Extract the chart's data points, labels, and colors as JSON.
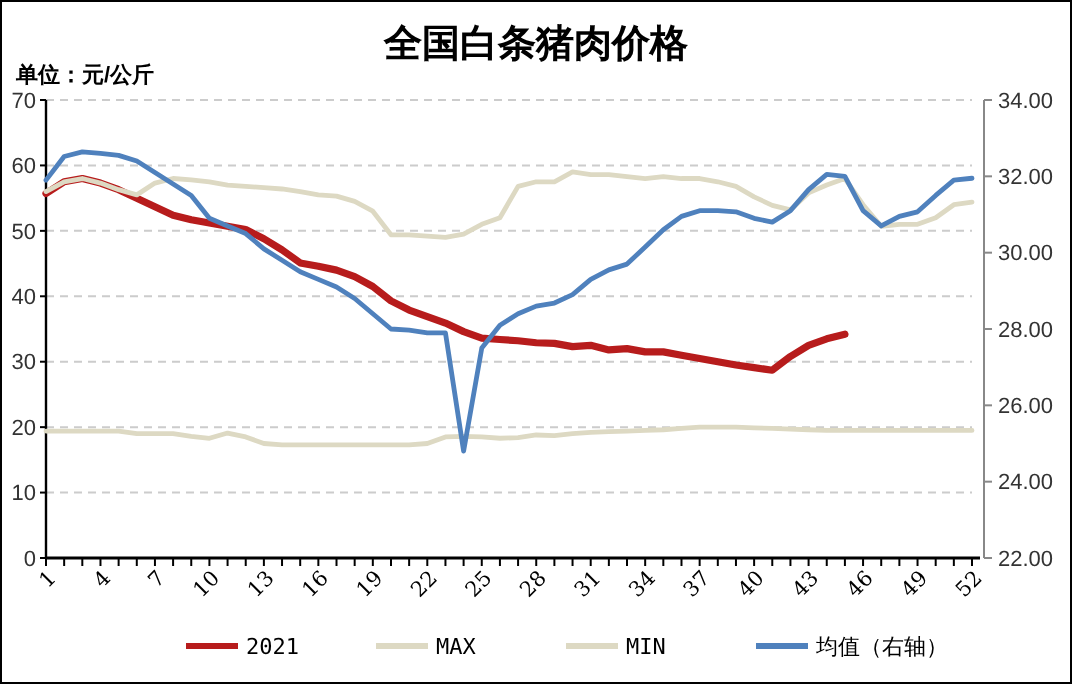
{
  "chart_data": {
    "type": "line",
    "title": "全国白条猪肉价格",
    "ylabel": "单位：元/公斤",
    "categories": [
      "1",
      null,
      null,
      "4",
      null,
      null,
      "7",
      null,
      null,
      "10",
      null,
      null,
      "13",
      null,
      null,
      "16",
      null,
      null,
      "19",
      null,
      null,
      "22",
      null,
      null,
      "25",
      null,
      null,
      "28",
      null,
      null,
      "31",
      null,
      null,
      "34",
      null,
      null,
      "37",
      null,
      null,
      "40",
      null,
      null,
      "43",
      null,
      null,
      "46",
      null,
      null,
      "49",
      null,
      null,
      "52"
    ],
    "series": [
      {
        "name": "2021",
        "color": "#b71c1c",
        "values": [
          55.7,
          57.5,
          58,
          57.3,
          56.3,
          55,
          53.7,
          52.4,
          51.7,
          51.2,
          50.7,
          50.2,
          48.8,
          47.1,
          45.1,
          44.6,
          44,
          43,
          41.5,
          39.3,
          37.9,
          36.9,
          35.9,
          34.6,
          33.6,
          33.4,
          33.2,
          32.9,
          32.8,
          32.3,
          32.5,
          31.8,
          32,
          31.5,
          31.5,
          31,
          30.5,
          30,
          29.5,
          29.1,
          28.7,
          30.8,
          32.5,
          33.5,
          34.2,
          null,
          null,
          null,
          null,
          null,
          null,
          null
        ]
      },
      {
        "name": "MAX",
        "color": "#ddd9c3",
        "values": [
          56,
          57.5,
          58,
          57.3,
          56.3,
          55.5,
          57.3,
          58,
          57.8,
          57.5,
          57,
          56.8,
          56.6,
          56.4,
          56,
          55.5,
          55.3,
          54.5,
          53,
          49.4,
          49.4,
          49.2,
          49,
          49.5,
          51,
          52,
          56.8,
          57.5,
          57.5,
          59,
          58.6,
          58.6,
          58.3,
          58,
          58.3,
          58,
          58,
          57.5,
          56.8,
          55.2,
          53.9,
          53.2,
          55.8,
          57,
          58,
          54,
          50.7,
          51,
          51,
          52,
          54,
          54.4
        ]
      },
      {
        "name": "MIN",
        "color": "#ddd9c3",
        "values": [
          19.4,
          19.4,
          19.4,
          19.4,
          19.4,
          19,
          19,
          19,
          18.6,
          18.3,
          19.1,
          18.5,
          17.5,
          17.3,
          17.3,
          17.3,
          17.3,
          17.3,
          17.3,
          17.3,
          17.3,
          17.5,
          18.5,
          18.6,
          18.5,
          18.3,
          18.4,
          18.8,
          18.7,
          19,
          19.2,
          19.3,
          19.4,
          19.5,
          19.6,
          19.8,
          20,
          20,
          20,
          19.9,
          19.8,
          19.7,
          19.6,
          19.5,
          19.5,
          19.5,
          19.5,
          19.5,
          19.5,
          19.5,
          19.5,
          19.5
        ]
      },
      {
        "name": "均值（右轴）",
        "color": "#4f81bd",
        "axis": "y2",
        "values": [
          31.9,
          32.52,
          32.64,
          32.6,
          32.55,
          32.4,
          32.1,
          31.8,
          31.5,
          30.9,
          30.7,
          30.5,
          30.1,
          29.8,
          29.5,
          29.3,
          29.1,
          28.8,
          28.4,
          28,
          27.97,
          27.9,
          27.9,
          24.8,
          27.5,
          28.1,
          28.4,
          28.6,
          28.68,
          28.9,
          29.3,
          29.55,
          29.7,
          30.15,
          30.6,
          30.95,
          31.1,
          31.1,
          31.07,
          30.9,
          30.8,
          31.1,
          31.65,
          32.05,
          32,
          31.1,
          30.7,
          30.95,
          31.07,
          31.5,
          31.9,
          31.95
        ]
      }
    ],
    "ylim": [
      0,
      70
    ],
    "yticks": [
      0,
      10,
      20,
      30,
      40,
      50,
      60,
      70
    ],
    "y2lim": [
      22,
      34
    ],
    "y2ticks": [
      {
        "value": 22,
        "label": "22.00"
      },
      {
        "value": 24,
        "label": "24.00"
      },
      {
        "value": 26,
        "label": "26.00"
      },
      {
        "value": 28,
        "label": "28.00"
      },
      {
        "value": 30,
        "label": "30.00"
      },
      {
        "value": 32,
        "label": "32.00"
      },
      {
        "value": 34,
        "label": "34.00"
      }
    ],
    "grid": "y",
    "legend": "bottom",
    "marker": "none",
    "line_style": "solid"
  }
}
